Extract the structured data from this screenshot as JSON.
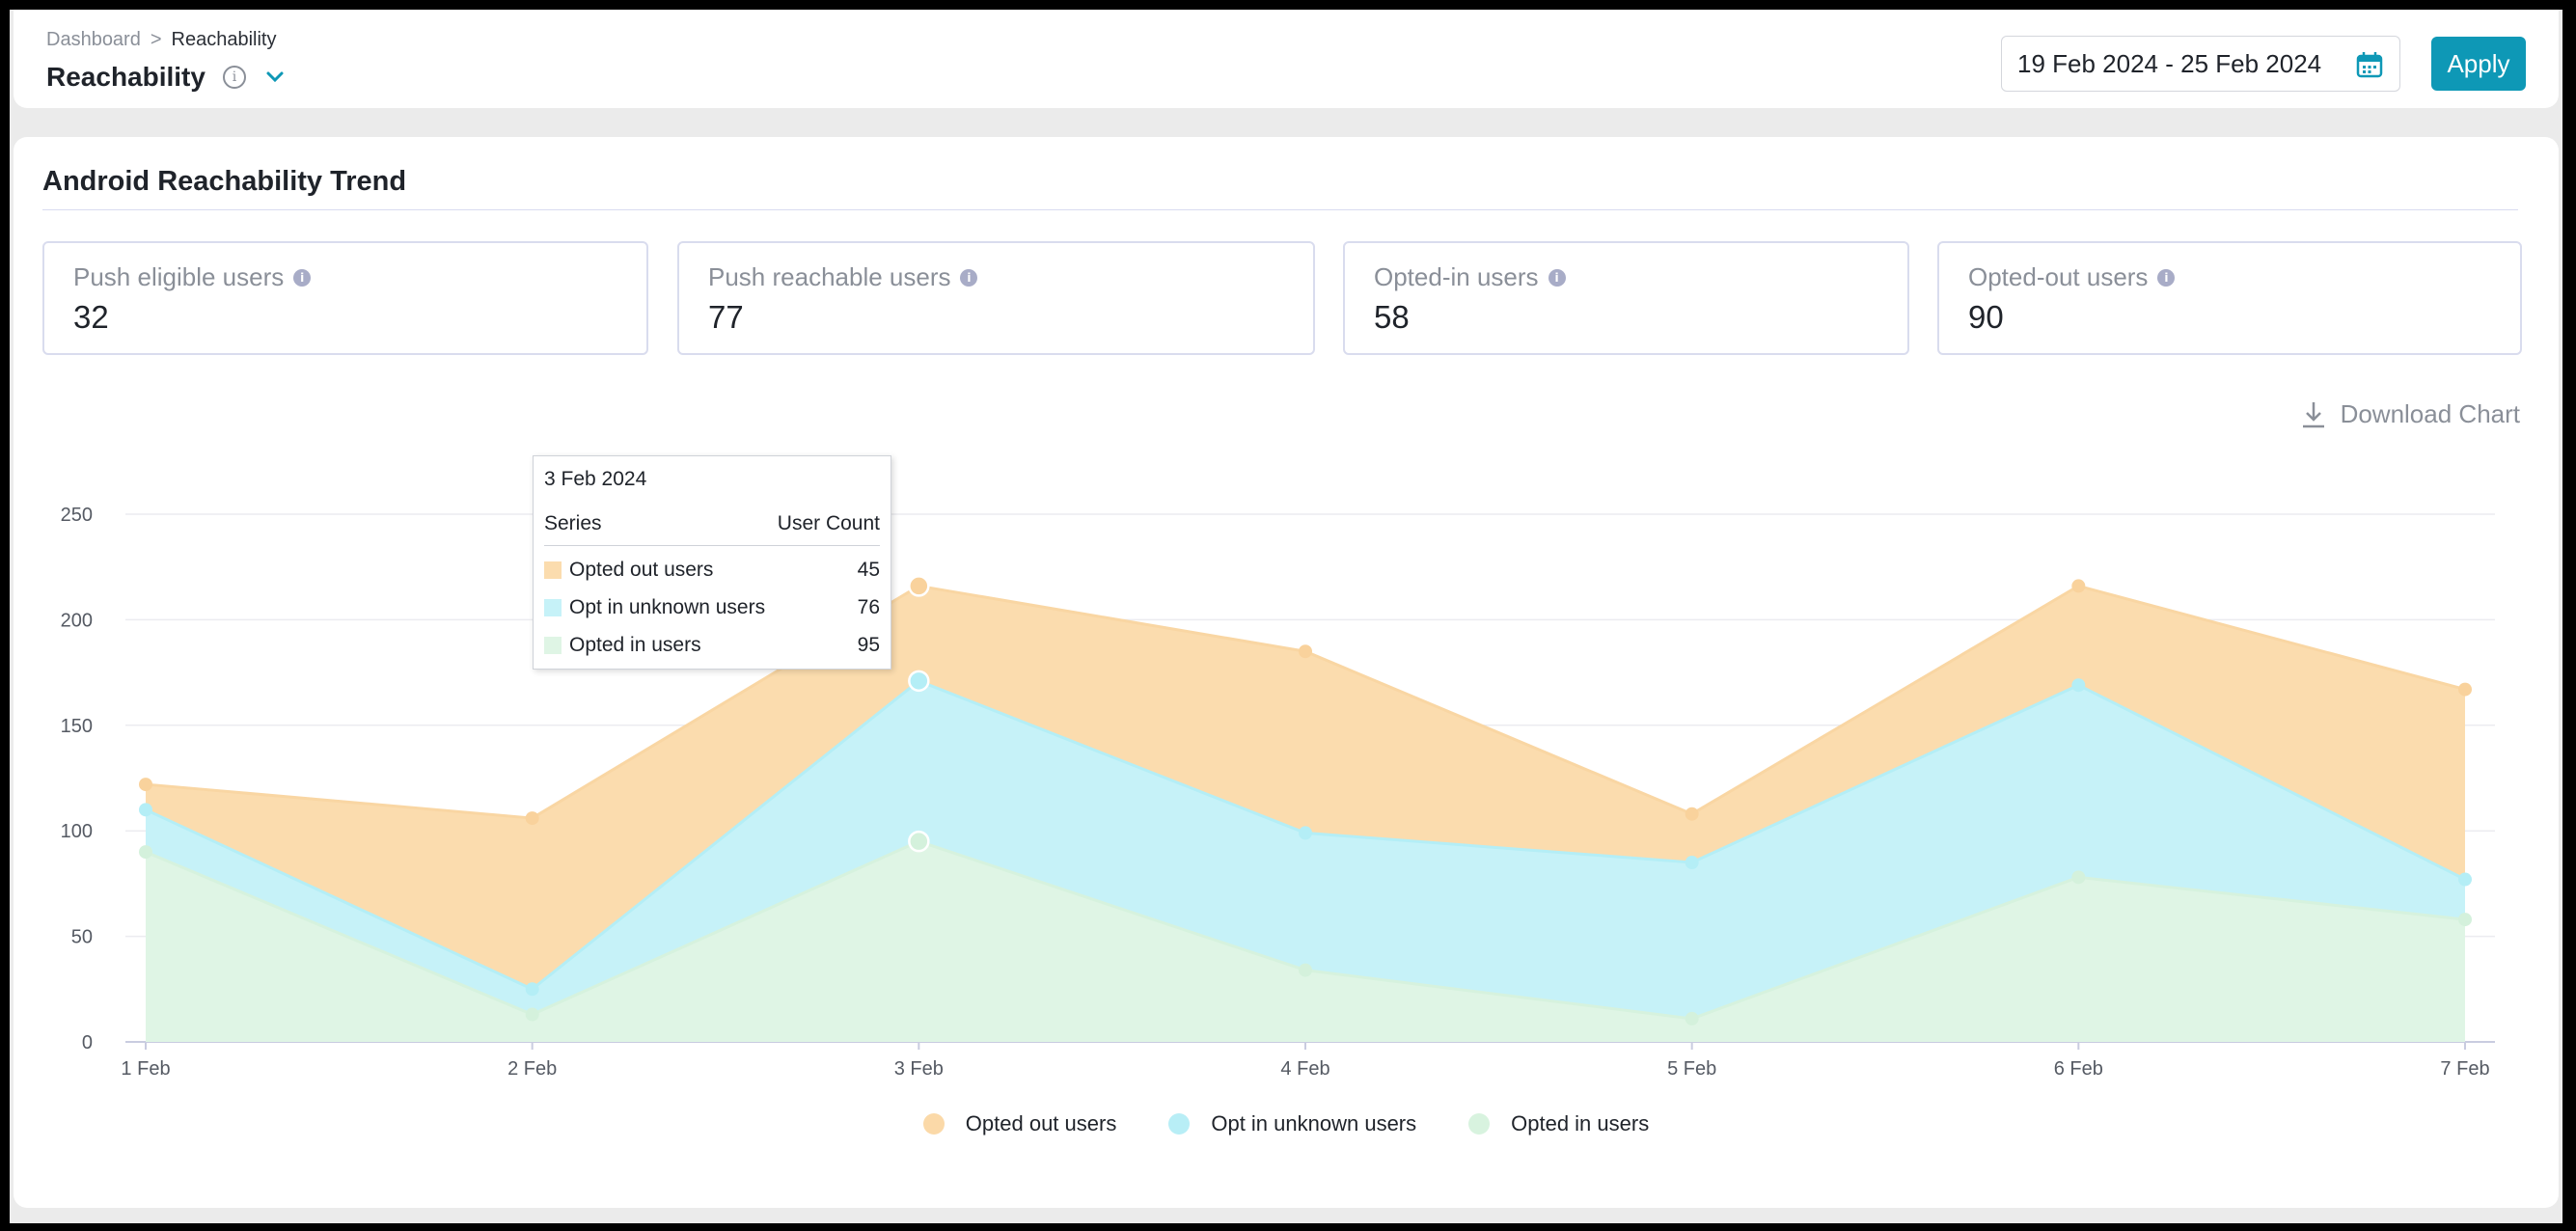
{
  "header": {
    "breadcrumb": {
      "root": "Dashboard",
      "separator": ">",
      "current": "Reachability"
    },
    "title": "Reachability",
    "date_range": "19 Feb 2024 - 25 Feb 2024",
    "apply_label": "Apply"
  },
  "card": {
    "title": "Android Reachability Trend",
    "stats": [
      {
        "label": "Push eligible users",
        "value": "32"
      },
      {
        "label": "Push reachable users",
        "value": "77"
      },
      {
        "label": "Opted-in users",
        "value": "58"
      },
      {
        "label": "Opted-out users",
        "value": "90"
      }
    ],
    "download_label": "Download Chart"
  },
  "tooltip": {
    "date": "3 Feb 2024",
    "col_series": "Series",
    "col_count": "User Count",
    "rows": [
      {
        "name": "Opted out users",
        "value": "45"
      },
      {
        "name": "Opt in unknown users",
        "value": "76"
      },
      {
        "name": "Opted in users",
        "value": "95"
      }
    ]
  },
  "colors": {
    "accent": "#0e98b6",
    "opted_out": "#fbdcae",
    "opt_in_unknown": "#c6f2f8",
    "opted_in": "#dff5e5"
  },
  "chart_data": {
    "type": "area",
    "stacked": true,
    "categories": [
      "1 Feb",
      "2 Feb",
      "3 Feb",
      "4 Feb",
      "5 Feb",
      "6 Feb",
      "7 Feb"
    ],
    "ylim": [
      0,
      250
    ],
    "yticks": [
      0,
      50,
      100,
      150,
      200,
      250
    ],
    "grid": true,
    "legend_position": "bottom",
    "series": [
      {
        "name": "Opted in users",
        "values": [
          90,
          13,
          95,
          34,
          11,
          78,
          58
        ]
      },
      {
        "name": "Opt in unknown users",
        "values": [
          20,
          12,
          76,
          65,
          74,
          91,
          19
        ]
      },
      {
        "name": "Opted out users",
        "values": [
          12,
          81,
          45,
          86,
          23,
          47,
          90
        ]
      }
    ]
  }
}
